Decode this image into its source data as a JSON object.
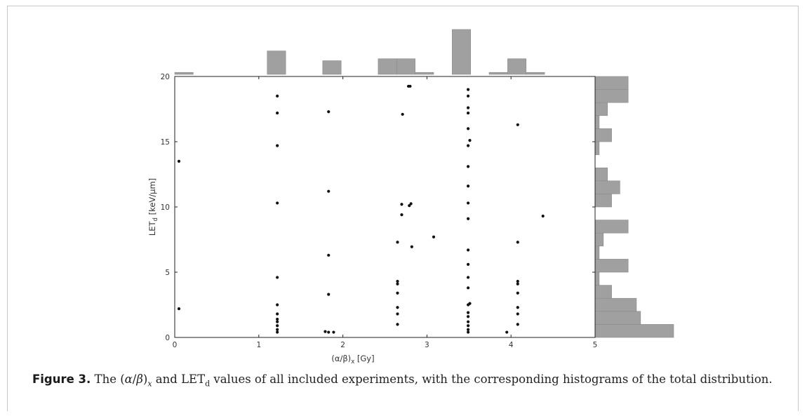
{
  "caption": {
    "label": "Figure 3.",
    "text_a": " The (",
    "alpha": "α",
    "slash": "/",
    "beta": "β",
    "close": ")",
    "sub_x": "x",
    "text_b": " and LET",
    "sub_d": "d",
    "text_c": " values of all included experiments, with the corresponding histograms of the total distribution."
  },
  "chart_data": {
    "type": "scatter",
    "xlabel_main": "(α/β)",
    "xlabel_sub": "x",
    "xlabel_unit": " [Gy]",
    "ylabel_main": "LET",
    "ylabel_sub": "d",
    "ylabel_unit": " [keV/μm]",
    "xlim": [
      0,
      5
    ],
    "ylim": [
      0,
      20
    ],
    "xticks": [
      0,
      1,
      2,
      3,
      4,
      5
    ],
    "yticks": [
      0,
      5,
      10,
      15,
      20
    ],
    "grid": false,
    "marker_color": "#111111",
    "hist_color": "#a0a0a0",
    "points": [
      [
        0.05,
        13.5
      ],
      [
        0.05,
        2.2
      ],
      [
        1.22,
        18.5
      ],
      [
        1.22,
        17.2
      ],
      [
        1.22,
        14.7
      ],
      [
        1.22,
        10.3
      ],
      [
        1.22,
        4.6
      ],
      [
        1.22,
        2.5
      ],
      [
        1.22,
        1.8
      ],
      [
        1.22,
        1.4
      ],
      [
        1.22,
        1.2
      ],
      [
        1.22,
        0.9
      ],
      [
        1.22,
        0.6
      ],
      [
        1.22,
        0.4
      ],
      [
        1.83,
        17.3
      ],
      [
        1.83,
        11.2
      ],
      [
        1.83,
        6.3
      ],
      [
        1.83,
        3.3
      ],
      [
        1.79,
        0.45
      ],
      [
        1.83,
        0.4
      ],
      [
        1.89,
        0.4
      ],
      [
        2.78,
        19.25
      ],
      [
        2.8,
        19.25
      ],
      [
        2.71,
        17.1
      ],
      [
        2.7,
        10.2
      ],
      [
        2.79,
        10.1
      ],
      [
        2.81,
        10.25
      ],
      [
        2.7,
        9.4
      ],
      [
        2.65,
        7.3
      ],
      [
        2.82,
        6.95
      ],
      [
        3.08,
        7.7
      ],
      [
        2.65,
        4.3
      ],
      [
        2.65,
        4.1
      ],
      [
        2.65,
        3.4
      ],
      [
        2.65,
        2.3
      ],
      [
        2.65,
        1.8
      ],
      [
        2.65,
        1.0
      ],
      [
        3.49,
        19.0
      ],
      [
        3.49,
        18.5
      ],
      [
        3.49,
        17.6
      ],
      [
        3.49,
        17.2
      ],
      [
        3.49,
        16.0
      ],
      [
        3.51,
        15.1
      ],
      [
        3.49,
        14.7
      ],
      [
        3.49,
        13.1
      ],
      [
        3.49,
        11.6
      ],
      [
        3.49,
        10.3
      ],
      [
        3.49,
        9.1
      ],
      [
        3.49,
        6.7
      ],
      [
        3.49,
        5.6
      ],
      [
        3.49,
        4.6
      ],
      [
        3.49,
        3.8
      ],
      [
        3.51,
        2.6
      ],
      [
        3.49,
        2.5
      ],
      [
        3.49,
        1.9
      ],
      [
        3.49,
        1.6
      ],
      [
        3.49,
        1.2
      ],
      [
        3.49,
        0.9
      ],
      [
        3.49,
        0.6
      ],
      [
        3.49,
        0.4
      ],
      [
        4.08,
        16.3
      ],
      [
        4.08,
        7.3
      ],
      [
        4.08,
        4.3
      ],
      [
        4.08,
        4.1
      ],
      [
        4.08,
        3.4
      ],
      [
        4.08,
        2.3
      ],
      [
        4.08,
        1.8
      ],
      [
        4.08,
        1.0
      ],
      [
        3.95,
        0.4
      ],
      [
        4.38,
        9.3
      ]
    ],
    "x_histogram": {
      "edges": [
        0,
        0.22,
        0.44,
        0.66,
        0.88,
        1.1,
        1.32,
        1.54,
        1.76,
        1.98,
        2.2,
        2.42,
        2.64,
        2.86,
        3.08,
        3.3,
        3.52,
        3.74,
        3.96,
        4.18,
        4.4
      ],
      "counts": [
        1,
        0,
        0,
        0,
        0,
        12,
        0,
        0,
        7,
        0,
        0,
        8,
        8,
        1,
        0,
        23,
        0,
        1,
        8,
        1
      ]
    },
    "y_histogram": {
      "edges": [
        0,
        1,
        2,
        3,
        4,
        5,
        6,
        7,
        8,
        9,
        10,
        11,
        12,
        13,
        14,
        15,
        16,
        17,
        18,
        19,
        20
      ],
      "counts": [
        19,
        11,
        10,
        4,
        1,
        8,
        1,
        2,
        8,
        0,
        4,
        6,
        3,
        0,
        1,
        4,
        1,
        3,
        8,
        8
      ]
    }
  }
}
